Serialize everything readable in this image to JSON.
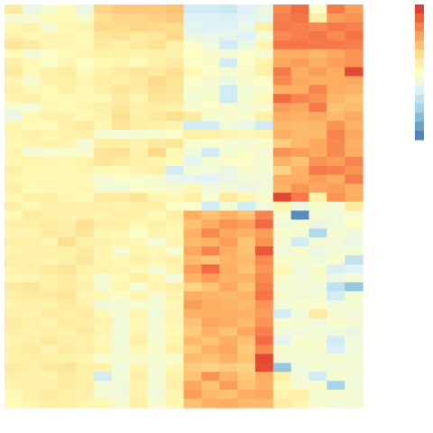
{
  "chart_data": {
    "type": "heatmap",
    "title": "",
    "xlabel": "",
    "ylabel": "",
    "n_rows": 45,
    "n_cols": 20,
    "value_range": [
      -5,
      5
    ],
    "palette": [
      "#4575b4",
      "#74add1",
      "#abd9e9",
      "#e0f3f8",
      "#ffffbf",
      "#fee090",
      "#fdae61",
      "#f46d43",
      "#d73027"
    ],
    "legend": {
      "placement": "right",
      "type": "colorbar",
      "tick_labels": []
    },
    "values": [
      [
        0.8,
        -0.8,
        -0.3,
        0.2,
        -0.8,
        1.5,
        1.8,
        1.8,
        1.8,
        2.0,
        -1.6,
        -1.6,
        -1.8,
        -1.3,
        -0.8,
        3.2,
        3.8,
        -0.2,
        3.5,
        2.8
      ],
      [
        -0.4,
        -0.4,
        0.2,
        0.2,
        -0.3,
        1.2,
        1.5,
        1.5,
        1.6,
        1.8,
        -1.2,
        -1.3,
        -1.4,
        -1.1,
        -0.9,
        3.4,
        3.6,
        0.6,
        2.8,
        3.0
      ],
      [
        0.3,
        0.5,
        -0.5,
        0.3,
        0.4,
        1.4,
        1.3,
        1.5,
        1.4,
        1.3,
        -1.1,
        -1.2,
        -1.2,
        -0.8,
        0.6,
        3.5,
        3.4,
        3.2,
        3.5,
        3.4
      ],
      [
        0.6,
        0.3,
        0.4,
        0.4,
        0.2,
        1.0,
        1.2,
        0.8,
        1.0,
        1.4,
        -0.8,
        -0.9,
        -1.0,
        -1.2,
        -0.5,
        3.2,
        3.4,
        3.6,
        3.2,
        3.6
      ],
      [
        1.0,
        0.8,
        0.4,
        0.4,
        0.3,
        0.8,
        0.6,
        0.9,
        1.2,
        0.6,
        -0.2,
        -0.6,
        -1.6,
        -0.8,
        0.4,
        3.6,
        3.6,
        3.5,
        3.5,
        3.4
      ],
      [
        0.2,
        -0.6,
        -0.2,
        0.2,
        0.4,
        0.5,
        0.6,
        0.4,
        0.6,
        0.5,
        0.0,
        -0.3,
        -0.5,
        -0.2,
        -0.4,
        2.5,
        2.5,
        2.3,
        2.6,
        3.0
      ],
      [
        0.6,
        0.3,
        -0.2,
        0.4,
        -0.1,
        0.3,
        0.4,
        0.2,
        0.6,
        0.8,
        -0.2,
        -0.3,
        -1.6,
        -0.2,
        0.5,
        2.6,
        2.8,
        2.5,
        2.8,
        3.0
      ],
      [
        0.8,
        0.2,
        0.5,
        0.7,
        0.2,
        0.5,
        0.8,
        1.0,
        0.8,
        1.2,
        0.3,
        -0.2,
        -0.4,
        -0.3,
        0.5,
        3.5,
        2.5,
        2.8,
        2.5,
        4.5
      ],
      [
        0.4,
        -0.4,
        0.5,
        0.6,
        0.4,
        0.7,
        0.6,
        0.8,
        1.4,
        1.0,
        -0.2,
        -0.4,
        -0.8,
        -0.3,
        -0.2,
        3.2,
        2.6,
        2.5,
        2.5,
        2.6
      ],
      [
        0.6,
        0.3,
        0.2,
        0.6,
        0.3,
        0.6,
        1.0,
        0.8,
        1.2,
        1.0,
        -0.3,
        -0.4,
        -1.6,
        -0.5,
        -0.3,
        2.5,
        2.5,
        3.3,
        2.5,
        2.4
      ],
      [
        0.4,
        0.6,
        0.2,
        0.3,
        0.3,
        0.3,
        0.8,
        0.4,
        1.0,
        0.9,
        -0.5,
        -0.3,
        -1.6,
        -0.4,
        0.2,
        3.8,
        3.3,
        3.0,
        2.3,
        2.0
      ],
      [
        -0.4,
        -0.5,
        0.3,
        0.2,
        0.4,
        0.6,
        1.0,
        0.6,
        0.7,
        0.6,
        -0.3,
        -0.2,
        -0.4,
        -0.4,
        -0.3,
        2.8,
        2.6,
        3.5,
        2.0,
        2.2
      ],
      [
        -0.8,
        0.3,
        0.5,
        0.5,
        0.3,
        0.5,
        1.2,
        0.6,
        0.8,
        1.2,
        0.8,
        -0.4,
        -0.3,
        -0.3,
        0.6,
        2.5,
        2.4,
        2.6,
        2.2,
        2.6
      ],
      [
        0.4,
        0.2,
        0.2,
        0.6,
        0.8,
        0.3,
        1.0,
        0.7,
        0.5,
        0.4,
        -1.6,
        -1.5,
        -0.6,
        -0.8,
        -1.6,
        2.3,
        2.2,
        2.3,
        3.0,
        2.4
      ],
      [
        0.4,
        0.6,
        0.4,
        0.5,
        0.5,
        -0.4,
        -0.5,
        -0.4,
        -0.4,
        -0.2,
        0.6,
        0.6,
        0.4,
        0.3,
        0.4,
        2.5,
        2.2,
        2.2,
        3.3,
        2.6
      ],
      [
        0.3,
        0.4,
        0.5,
        0.4,
        -0.5,
        0.6,
        0.6,
        0.4,
        0.8,
        1.0,
        -0.3,
        -0.2,
        -0.4,
        -0.5,
        -0.2,
        1.8,
        2.2,
        2.6,
        3.2,
        2.4
      ],
      [
        0.4,
        -0.4,
        -0.4,
        -0.3,
        -0.3,
        1.0,
        1.2,
        0.5,
        1.4,
        0.3,
        -0.6,
        -1.6,
        -0.4,
        -0.2,
        -0.5,
        3.0,
        2.8,
        2.6,
        3.2,
        2.5
      ],
      [
        0.3,
        0.5,
        0.4,
        0.3,
        0.5,
        1.0,
        0.8,
        0.6,
        0.4,
        0.2,
        -1.1,
        -0.4,
        -0.2,
        -0.2,
        -0.4,
        2.4,
        2.0,
        3.0,
        2.8,
        3.3
      ],
      [
        0.6,
        0.3,
        0.3,
        0.3,
        0.4,
        0.3,
        0.2,
        0.4,
        0.6,
        -1.6,
        -0.5,
        -0.6,
        -0.8,
        -0.3,
        -0.4,
        1.6,
        2.4,
        3.5,
        3.4,
        3.0
      ],
      [
        0.4,
        0.3,
        0.4,
        0.3,
        0.3,
        -0.5,
        -0.2,
        -0.3,
        -0.4,
        -0.8,
        -1.0,
        -1.2,
        -0.8,
        -0.5,
        -0.6,
        2.5,
        2.5,
        2.8,
        2.5,
        3.4
      ],
      [
        0.6,
        0.2,
        0.3,
        0.3,
        0.4,
        -0.4,
        -0.6,
        -0.2,
        -0.3,
        -0.4,
        0.3,
        -0.6,
        -0.4,
        -0.8,
        -0.6,
        2.4,
        3.0,
        2.6,
        2.8,
        2.5
      ],
      [
        0.3,
        0.6,
        0.6,
        0.4,
        0.2,
        0.8,
        0.8,
        1.0,
        0.4,
        0.3,
        0.6,
        -0.4,
        0.8,
        0.4,
        -0.3,
        4.5,
        3.5,
        0.6,
        3.0,
        2.5
      ],
      [
        0.6,
        0.3,
        0.5,
        0.6,
        0.5,
        0.6,
        0.4,
        0.6,
        0.6,
        -0.2,
        -0.2,
        -1.6,
        -0.5,
        -1.6,
        -0.6,
        0.4,
        -0.8,
        -0.3,
        -0.5,
        0.8
      ],
      [
        0.2,
        0.8,
        0.6,
        0.5,
        0.5,
        0.4,
        0.6,
        0.6,
        0.2,
        0.6,
        2.5,
        2.0,
        2.4,
        2.0,
        3.3,
        -0.4,
        -4.5,
        -0.4,
        -0.6,
        -0.3
      ],
      [
        0.6,
        0.6,
        0.8,
        0.6,
        1.2,
        0.6,
        0.6,
        0.3,
        0.6,
        0.4,
        2.0,
        2.5,
        3.0,
        2.8,
        3.8,
        -0.6,
        -0.4,
        -0.8,
        -0.6,
        -0.2
      ],
      [
        0.4,
        0.4,
        0.8,
        0.7,
        1.0,
        0.4,
        0.3,
        -0.2,
        0.4,
        0.3,
        2.4,
        3.2,
        2.6,
        2.4,
        2.8,
        -0.3,
        -0.4,
        -2.4,
        -0.4,
        -0.6
      ],
      [
        0.6,
        0.6,
        0.4,
        1.2,
        0.5,
        0.5,
        0.4,
        0.3,
        -0.5,
        0.4,
        2.2,
        2.4,
        2.8,
        2.0,
        3.0,
        -0.5,
        -1.6,
        -0.4,
        -0.6,
        -0.8
      ],
      [
        0.4,
        0.6,
        0.6,
        0.5,
        0.8,
        0.4,
        -0.4,
        0.4,
        0.3,
        -0.4,
        2.6,
        3.3,
        2.5,
        2.0,
        4.2,
        -0.6,
        -0.3,
        -0.8,
        -0.4,
        -0.5
      ],
      [
        0.6,
        0.5,
        0.4,
        0.6,
        1.0,
        0.4,
        0.3,
        0.6,
        0.4,
        0.6,
        2.2,
        2.0,
        2.4,
        2.2,
        3.2,
        -0.3,
        -0.4,
        -0.6,
        -0.3,
        -2.0
      ],
      [
        0.5,
        0.6,
        0.8,
        1.0,
        0.5,
        0.5,
        0.4,
        0.3,
        -0.4,
        0.4,
        2.8,
        3.8,
        2.5,
        2.0,
        3.0,
        0.3,
        -0.6,
        -0.3,
        -1.4,
        -1.2
      ],
      [
        0.3,
        0.4,
        0.6,
        0.8,
        0.4,
        -0.5,
        0.2,
        0.6,
        0.3,
        -0.5,
        2.4,
        2.8,
        2.4,
        2.4,
        3.2,
        -0.3,
        -0.6,
        -0.3,
        -0.8,
        -0.5
      ],
      [
        0.8,
        1.0,
        0.6,
        0.8,
        0.6,
        -0.4,
        0.4,
        -0.4,
        0.4,
        0.6,
        1.6,
        2.0,
        2.6,
        2.0,
        3.4,
        -0.5,
        -0.4,
        -0.6,
        -2.0,
        -3.0
      ],
      [
        0.6,
        0.8,
        0.8,
        1.0,
        0.4,
        0.3,
        -0.2,
        0.4,
        -0.4,
        0.4,
        2.5,
        2.4,
        2.2,
        2.4,
        3.6,
        -0.3,
        -0.6,
        -0.4,
        -1.6,
        -0.4
      ],
      [
        0.4,
        0.6,
        0.5,
        0.8,
        0.5,
        -0.6,
        -0.5,
        -0.4,
        -0.5,
        0.3,
        2.8,
        2.5,
        2.4,
        2.2,
        3.0,
        -0.5,
        -0.3,
        -0.2,
        -0.6,
        -0.4
      ],
      [
        0.6,
        0.4,
        0.8,
        0.6,
        0.8,
        0.3,
        -0.5,
        0.4,
        -0.6,
        0.4,
        2.4,
        2.5,
        2.5,
        2.4,
        2.8,
        -1.6,
        -0.6,
        0.8,
        -0.4,
        -0.5
      ],
      [
        0.8,
        0.6,
        0.4,
        0.8,
        0.6,
        0.5,
        -0.6,
        0.3,
        -0.4,
        0.4,
        2.0,
        2.6,
        2.5,
        2.2,
        3.0,
        -0.3,
        -0.4,
        -0.6,
        -0.3,
        -0.4
      ],
      [
        0.6,
        0.5,
        0.6,
        0.5,
        0.8,
        0.4,
        -0.5,
        0.4,
        -0.5,
        0.3,
        1.8,
        2.4,
        2.0,
        2.6,
        3.4,
        -0.6,
        -0.6,
        -0.5,
        -0.6,
        -0.8
      ],
      [
        0.4,
        0.6,
        0.8,
        0.6,
        0.5,
        0.3,
        -0.6,
        0.6,
        -0.4,
        0.4,
        2.2,
        2.0,
        2.5,
        2.0,
        3.8,
        -1.1,
        -0.3,
        -0.4,
        -1.6,
        -0.5
      ],
      [
        0.6,
        0.8,
        0.4,
        0.8,
        0.6,
        0.4,
        -0.5,
        0.3,
        -0.3,
        0.6,
        1.8,
        2.4,
        2.6,
        1.8,
        3.2,
        -0.3,
        -0.4,
        -0.3,
        -1.4,
        -0.6
      ],
      [
        0.5,
        0.6,
        0.6,
        0.5,
        0.4,
        -0.3,
        -0.4,
        -0.3,
        -0.4,
        -0.3,
        2.2,
        2.0,
        2.4,
        2.0,
        4.5,
        -0.6,
        -0.4,
        -0.5,
        -0.3,
        -0.5
      ],
      [
        0.8,
        0.6,
        0.8,
        1.0,
        0.6,
        0.5,
        -0.6,
        0.4,
        -0.5,
        0.3,
        1.8,
        1.6,
        1.8,
        1.6,
        4.4,
        -3.0,
        -0.6,
        -0.4,
        -0.6,
        -0.4
      ],
      [
        0.6,
        0.5,
        0.4,
        0.8,
        0.5,
        -1.6,
        -0.5,
        0.6,
        -0.5,
        0.5,
        2.0,
        3.0,
        2.4,
        1.8,
        2.5,
        0.6,
        -0.6,
        -1.6,
        -0.4,
        -0.5
      ],
      [
        0.4,
        0.6,
        0.6,
        0.8,
        0.6,
        -0.5,
        -0.6,
        0.4,
        -0.4,
        0.6,
        2.6,
        2.0,
        2.8,
        2.0,
        2.4,
        0.3,
        -0.4,
        -0.3,
        -2.6,
        -0.6
      ],
      [
        0.3,
        0.6,
        0.8,
        0.6,
        0.5,
        -0.5,
        -0.6,
        0.5,
        -0.6,
        0.4,
        2.8,
        2.2,
        2.0,
        2.5,
        2.6,
        0.5,
        0.6,
        -0.4,
        -0.3,
        -0.4
      ],
      [
        0.2,
        0.4,
        0.6,
        0.6,
        0.4,
        0.3,
        -0.4,
        0.6,
        -0.3,
        0.4,
        2.0,
        2.4,
        2.5,
        2.2,
        2.2,
        0.8,
        0.4,
        -0.3,
        -0.6,
        -0.5
      ]
    ]
  }
}
